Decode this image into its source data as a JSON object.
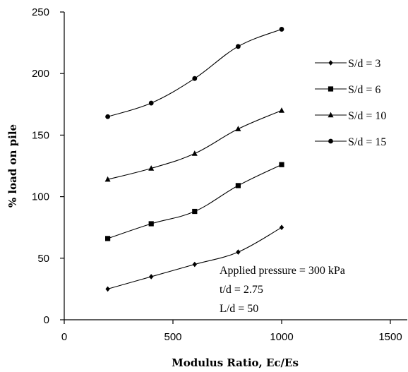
{
  "chart_data": {
    "type": "line",
    "xlabel": "Modulus Ratio, Ec/Es",
    "ylabel": "% load on pile",
    "xlim": [
      0,
      1500
    ],
    "ylim": [
      0,
      250
    ],
    "xticks": [
      0,
      500,
      1000,
      1500
    ],
    "yticks": [
      0,
      50,
      100,
      150,
      200,
      250
    ],
    "grid": false,
    "legend_position": "right",
    "x": [
      200,
      400,
      600,
      800,
      1000
    ],
    "series": [
      {
        "name": "S/d = 3",
        "marker": "diamond",
        "values": [
          25,
          35,
          45,
          55,
          75
        ]
      },
      {
        "name": "S/d = 6",
        "marker": "square",
        "values": [
          66,
          78,
          88,
          109,
          126
        ]
      },
      {
        "name": "S/d = 10",
        "marker": "triangle",
        "values": [
          114,
          123,
          135,
          155,
          170
        ]
      },
      {
        "name": "S/d = 15",
        "marker": "circle",
        "values": [
          165,
          176,
          196,
          222,
          236
        ]
      }
    ],
    "annotations": [
      "Applied pressure = 300 kPa",
      "t/d = 2.75",
      "L/d = 50"
    ]
  }
}
